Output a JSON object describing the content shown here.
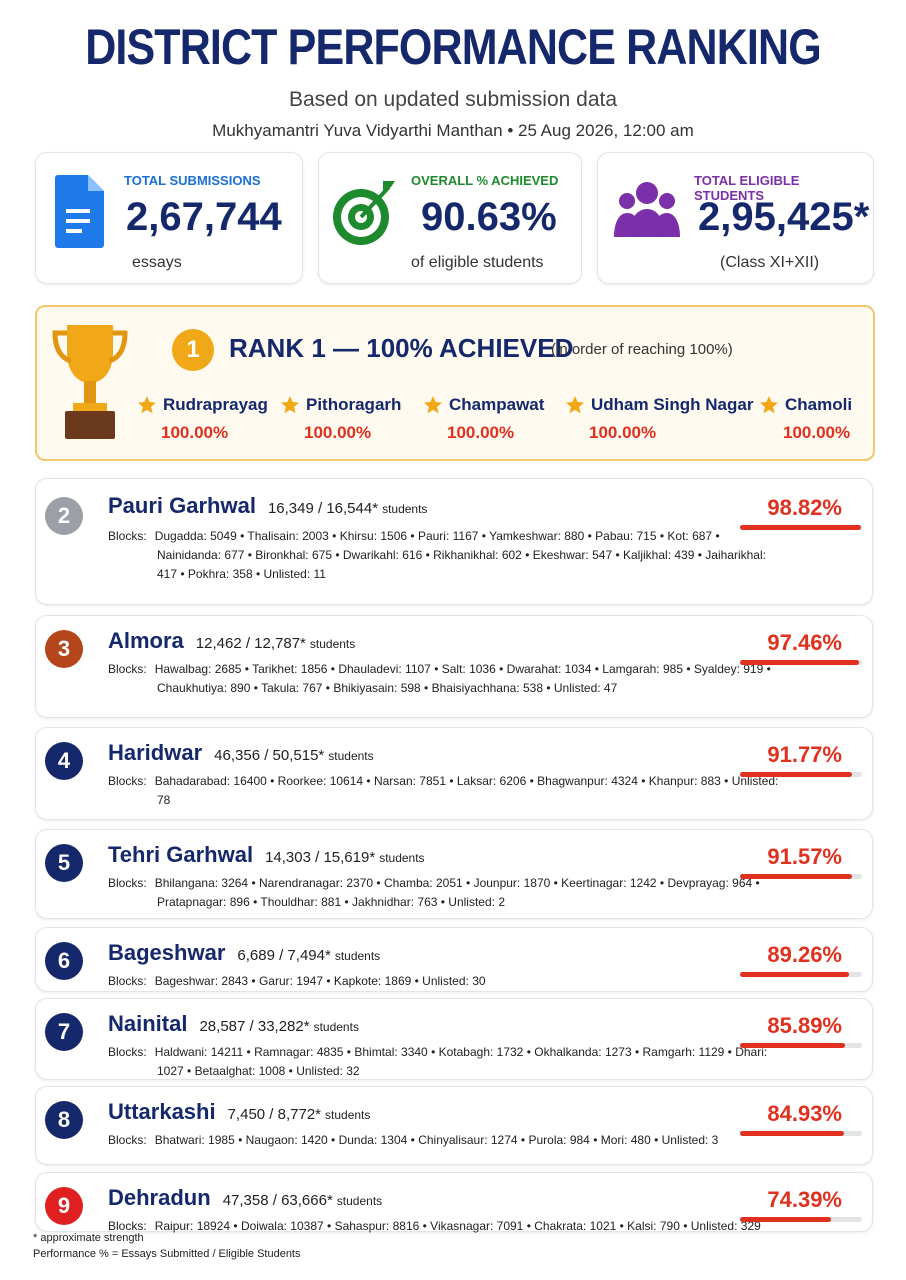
{
  "header": {
    "title": "DISTRICT PERFORMANCE RANKING",
    "subtitle": "Based on updated submission data",
    "meta": "Mukhyamantri Yuva Vidyarthi Manthan • 25 Aug 2026, 12:00 am"
  },
  "stats": [
    {
      "label": "TOTAL SUBMISSIONS",
      "value": "2,67,744",
      "note": "essays"
    },
    {
      "label": "OVERALL % ACHIEVED",
      "value": "90.63%",
      "note": "of eligible students"
    },
    {
      "label": "TOTAL ELIGIBLE STUDENTS",
      "value": "2,95,425*",
      "note": "(Class XI+XII)"
    }
  ],
  "rank1": {
    "badge": "1",
    "title": "RANK 1 — 100% ACHIEVED",
    "note": "(in order of reaching 100%)",
    "districts": [
      {
        "name": "Rudraprayag",
        "pct": "100.00%"
      },
      {
        "name": "Pithoragarh",
        "pct": "100.00%"
      },
      {
        "name": "Champawat",
        "pct": "100.00%"
      },
      {
        "name": "Udham Singh Nagar",
        "pct": "100.00%"
      },
      {
        "name": "Chamoli",
        "pct": "100.00%"
      }
    ]
  },
  "districts": [
    {
      "rank": "2",
      "name": "Pauri Garhwal",
      "count": "16,349 / 16,544*",
      "unit": "students",
      "blocks_label": "Blocks:",
      "blocks": [
        "Dugadda: 5049",
        "Thalisain: 2003",
        "Khirsu: 1506",
        "Pauri: 1167",
        "Yamkeshwar: 880",
        "Pabau: 715",
        "Kot: 687",
        "Nainidanda: 677",
        "Bironkhal: 675",
        "Dwarikahl: 616",
        "Rikhanikhal: 602",
        "Ekeshwar: 547",
        "Kaljikhal: 439",
        "Jaiharikhal: 417",
        "Pokhra: 358",
        "Unlisted: 11"
      ],
      "pct": "98.82%"
    },
    {
      "rank": "3",
      "name": "Almora",
      "count": "12,462 / 12,787*",
      "unit": "students",
      "blocks_label": "Blocks:",
      "blocks": [
        "Hawalbag: 2685",
        "Tarikhet: 1856",
        "Dhauladevi: 1107",
        "Salt: 1036",
        "Dwarahat: 1034",
        "Lamgarah: 985",
        "Syaldey: 919",
        "Chaukhutiya: 890",
        "Takula: 767",
        "Bhikiyasain: 598",
        "Bhaisiyachhana: 538",
        "Unlisted: 47"
      ],
      "pct": "97.46%"
    },
    {
      "rank": "4",
      "name": "Haridwar",
      "count": "46,356 / 50,515*",
      "unit": "students",
      "blocks_label": "Blocks:",
      "blocks": [
        "Bahadarabad: 16400",
        "Roorkee: 10614",
        "Narsan: 7851",
        "Laksar: 6206",
        "Bhagwanpur: 4324",
        "Khanpur: 883",
        "Unlisted: 78"
      ],
      "pct": "91.77%"
    },
    {
      "rank": "5",
      "name": "Tehri Garhwal",
      "count": "14,303 / 15,619*",
      "unit": "students",
      "blocks_label": "Blocks:",
      "blocks": [
        "Bhilangana: 3264",
        "Narendranagar: 2370",
        "Chamba: 2051",
        "Jounpur: 1870",
        "Keertinagar: 1242",
        "Devprayag: 964",
        "Pratapnagar: 896",
        "Thouldhar: 881",
        "Jakhnidhar: 763",
        "Unlisted: 2"
      ],
      "pct": "91.57%"
    },
    {
      "rank": "6",
      "name": "Bageshwar",
      "count": "6,689 / 7,494*",
      "unit": "students",
      "blocks_label": "Blocks:",
      "blocks": [
        "Bageshwar: 2843",
        "Garur: 1947",
        "Kapkote: 1869",
        "Unlisted: 30"
      ],
      "pct": "89.26%"
    },
    {
      "rank": "7",
      "name": "Nainital",
      "count": "28,587 / 33,282*",
      "unit": "students",
      "blocks_label": "Blocks:",
      "blocks": [
        "Haldwani: 14211",
        "Ramnagar: 4835",
        "Bhimtal: 3340",
        "Kotabagh: 1732",
        "Okhalkanda: 1273",
        "Ramgarh: 1129",
        "Dhari: 1027",
        "Betaalghat: 1008",
        "Unlisted: 32"
      ],
      "pct": "85.89%"
    },
    {
      "rank": "8",
      "name": "Uttarkashi",
      "count": "7,450 / 8,772*",
      "unit": "students",
      "blocks_label": "Blocks:",
      "blocks": [
        "Bhatwari: 1985",
        "Naugaon: 1420",
        "Dunda: 1304",
        "Chinyalisaur: 1274",
        "Purola: 984",
        "Mori: 480",
        "Unlisted: 3"
      ],
      "pct": "84.93%"
    },
    {
      "rank": "9",
      "name": "Dehradun",
      "count": "47,358 / 63,666*",
      "unit": "students",
      "blocks_label": "Blocks:",
      "blocks": [
        "Raipur: 18924",
        "Doiwala: 10387",
        "Sahaspur: 8816",
        "Vikasnagar: 7091",
        "Chakrata: 1021",
        "Kalsi: 790",
        "Unlisted: 329"
      ],
      "pct": "74.39%"
    }
  ],
  "footer": {
    "note": "* approximate strength",
    "formula": "Performance % = Essays Submitted / Eligible Students"
  }
}
